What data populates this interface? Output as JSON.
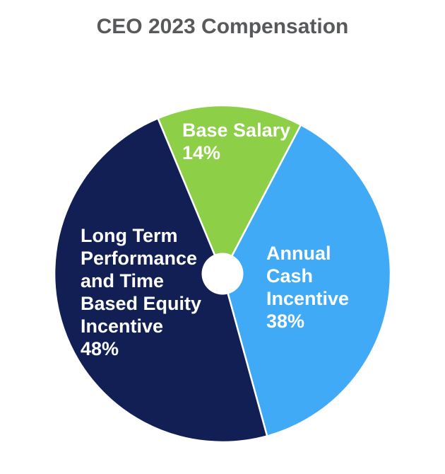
{
  "title": "CEO 2023 Compensation",
  "chart_data": {
    "type": "pie",
    "title": "CEO 2023 Compensation",
    "unit": "%",
    "legend": "none",
    "labels_position": "inside-slices",
    "start_angle_deg": -22.6,
    "direction": "clockwise",
    "donut_hole_ratio": 0.124,
    "separator_color": "#FFFFFF",
    "label_color": "#FFFFFF",
    "title_color": "#58595B",
    "background_color": "#FFFFFF",
    "slices": [
      {
        "label": "Base Salary",
        "value": 14,
        "value_text": "14%",
        "label_lines": [
          "Base Salary",
          "14%"
        ],
        "color": "#8DCF47"
      },
      {
        "label": "Annual Cash Incentive",
        "value": 38,
        "value_text": "38%",
        "label_lines": [
          "Annual",
          "Cash",
          "Incentive",
          "38%"
        ],
        "color": "#41AAF7"
      },
      {
        "label": "Long Term Performance and Time Based Equity Incentive",
        "value": 48,
        "value_text": "48%",
        "label_lines": [
          "Long Term",
          "Performance",
          "and Time",
          "Based Equity",
          "Incentive",
          "48%"
        ],
        "color": "#111F55"
      }
    ]
  }
}
